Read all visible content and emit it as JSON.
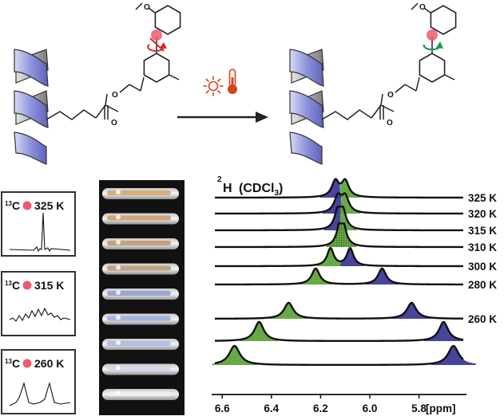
{
  "title": {
    "nucleus": "H",
    "mass": "2",
    "solvent_prefix": "(CDCl",
    "solvent_sub": "3",
    "solvent_suffix": ")"
  },
  "insets": [
    {
      "mass": "13",
      "element": "C",
      "temp": "325 K"
    },
    {
      "mass": "13",
      "element": "C",
      "temp": "315 K"
    },
    {
      "mass": "13",
      "element": "C",
      "temp": "260 K"
    }
  ],
  "spectrum_labels": [
    "325 K",
    "320 K",
    "315 K",
    "310 K",
    "300 K",
    "280 K",
    "260 K"
  ],
  "x_axis": {
    "ticks": [
      "6.6",
      "6.4",
      "6.2",
      "6.0",
      "5.8"
    ],
    "unit": "[ppm]"
  },
  "colors": {
    "helix": "#8d93dc",
    "helix_back": "#8a8a8a",
    "peak_green": "#5ea53a",
    "peak_blue": "#3d3a96",
    "marker_red": "#ee5a6a",
    "arrow_red": "#d6282a",
    "arrow_green": "#1d9a4a",
    "heat_icon": "#d8421f"
  },
  "chart_data": {
    "type": "line",
    "xlabel": "[ppm]",
    "xlim": [
      6.63,
      5.62
    ],
    "series": [
      {
        "name": "325 K",
        "peaks_ppm": [
          6.14,
          6.1
        ]
      },
      {
        "name": "320 K",
        "peaks_ppm": [
          6.13,
          6.1
        ]
      },
      {
        "name": "315 K",
        "peaks_ppm": [
          6.13,
          6.11
        ]
      },
      {
        "name": "310 K",
        "peaks_ppm": [
          6.12,
          6.11
        ]
      },
      {
        "name": "300 K",
        "peaks_ppm": [
          6.16,
          6.08
        ]
      },
      {
        "name": "280 K",
        "peaks_ppm": [
          6.22,
          5.95
        ]
      },
      {
        "name": "260 K",
        "peaks_ppm": [
          6.33,
          5.83
        ]
      },
      {
        "name": "",
        "peaks_ppm": [
          6.45,
          5.7
        ]
      },
      {
        "name": "",
        "peaks_ppm": [
          6.55,
          5.66
        ]
      }
    ]
  }
}
